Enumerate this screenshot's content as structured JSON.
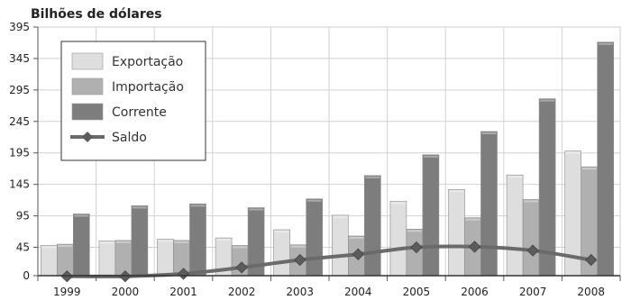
{
  "chart_data": {
    "type": "bar",
    "ylabel": "Bilhões de dólares",
    "categories": [
      "1999",
      "2000",
      "2001",
      "2002",
      "2003",
      "2004",
      "2005",
      "2006",
      "2007",
      "2008"
    ],
    "yticks": [
      0,
      45,
      95,
      145,
      195,
      245,
      295,
      345,
      395
    ],
    "ylim": [
      0,
      395
    ],
    "grid": true,
    "legend_position": "top-left",
    "series": [
      {
        "name": "Exportação",
        "type": "bar",
        "color": "#dedede",
        "values": [
          48,
          55,
          58,
          60,
          73,
          96,
          118,
          137,
          160,
          198
        ]
      },
      {
        "name": "Importação",
        "type": "bar",
        "color": "#b0b0b0",
        "values": [
          50,
          56,
          56,
          48,
          49,
          63,
          74,
          92,
          121,
          173
        ]
      },
      {
        "name": "Corrente",
        "type": "bar",
        "color": "#7d7d7d",
        "values": [
          98,
          111,
          114,
          108,
          122,
          159,
          192,
          229,
          281,
          371
        ]
      },
      {
        "name": "Saldo",
        "type": "line",
        "color": "#6a6a6a",
        "values": [
          -1,
          -1,
          3,
          13,
          25,
          34,
          45,
          46,
          40,
          25
        ]
      }
    ]
  }
}
